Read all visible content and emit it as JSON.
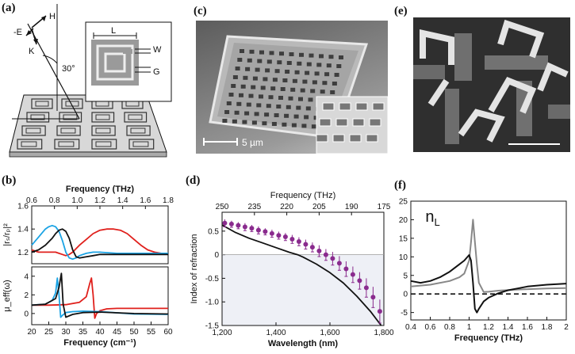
{
  "labels": {
    "a": "(a)",
    "b": "(b)",
    "c": "(c)",
    "d": "(d)",
    "e": "(e)",
    "f": "(f)"
  },
  "panel_a": {
    "H": "H",
    "E": "-E",
    "K": "K",
    "angle": "30°",
    "L": "L",
    "W": "W",
    "G": "G"
  },
  "panel_c": {
    "scale": "5 µm"
  },
  "colors": {
    "black": "#111111",
    "red": "#e0201c",
    "blue": "#1ba3e4",
    "purple": "#8a2b8e",
    "gray": "#888888"
  },
  "chart_data": [
    {
      "id": "b-top",
      "type": "line",
      "xlabel": "Frequency (cm⁻¹)",
      "top_axis_label": "Frequency (THz)",
      "ylabel": "|rₛ/rₚ|²",
      "x_ticks": [
        "20",
        "25",
        "30",
        "35",
        "40",
        "45",
        "50",
        "55",
        "60"
      ],
      "top_ticks": [
        "0.6",
        "0.8",
        "1.0",
        "1.2",
        "1.4",
        "1.6",
        "1.8"
      ],
      "y_ticks": [
        "1.2",
        "1.4",
        "1.6"
      ],
      "xlim": [
        20,
        60
      ],
      "ylim": [
        1.1,
        1.6
      ],
      "series": [
        {
          "color": "red",
          "x": [
            20,
            22,
            24,
            26,
            27,
            28,
            29,
            30,
            31,
            32,
            33,
            34,
            36,
            38,
            40,
            42,
            44,
            46,
            48,
            50,
            52,
            54,
            56,
            58,
            60
          ],
          "y": [
            1.22,
            1.2,
            1.2,
            1.2,
            1.2,
            1.19,
            1.18,
            1.17,
            1.18,
            1.2,
            1.23,
            1.26,
            1.31,
            1.36,
            1.39,
            1.4,
            1.4,
            1.39,
            1.36,
            1.31,
            1.26,
            1.22,
            1.2,
            1.19,
            1.19
          ]
        },
        {
          "color": "blue",
          "x": [
            20,
            22,
            24,
            25,
            26,
            27,
            28,
            29,
            30,
            31,
            32,
            33,
            34,
            36,
            38,
            40,
            45,
            50,
            55,
            60
          ],
          "y": [
            1.26,
            1.33,
            1.4,
            1.42,
            1.43,
            1.42,
            1.38,
            1.3,
            1.2,
            1.15,
            1.14,
            1.15,
            1.17,
            1.19,
            1.2,
            1.2,
            1.19,
            1.19,
            1.19,
            1.19
          ]
        },
        {
          "color": "black",
          "x": [
            20,
            22,
            24,
            26,
            27,
            28,
            29,
            30,
            31,
            32,
            33,
            34,
            36,
            38,
            40,
            45,
            50,
            55,
            60
          ],
          "y": [
            1.2,
            1.22,
            1.26,
            1.32,
            1.36,
            1.39,
            1.4,
            1.38,
            1.32,
            1.22,
            1.16,
            1.15,
            1.16,
            1.17,
            1.18,
            1.18,
            1.18,
            1.18,
            1.18
          ]
        }
      ]
    },
    {
      "id": "b-bottom",
      "type": "line",
      "xlabel": "Frequency (cm⁻¹)",
      "ylabel": "μ_eff(ω)",
      "x_ticks": [
        "20",
        "25",
        "30",
        "35",
        "40",
        "45",
        "50",
        "55",
        "60"
      ],
      "y_ticks": [
        "0",
        "2",
        "4"
      ],
      "xlim": [
        20,
        60
      ],
      "ylim": [
        -1.2,
        5
      ],
      "series": [
        {
          "color": "red",
          "x": [
            20,
            25,
            30,
            34,
            36,
            37,
            37.5,
            38,
            38.5,
            39,
            40,
            42,
            45,
            50,
            55,
            60
          ],
          "y": [
            0.9,
            0.9,
            0.95,
            1.2,
            1.8,
            3.2,
            3.8,
            2,
            -0.5,
            0,
            0.3,
            0.5,
            0.55,
            0.55,
            0.55,
            0.55
          ]
        },
        {
          "color": "blue",
          "x": [
            20,
            24,
            26,
            27,
            27.5,
            28,
            28.5,
            29,
            30,
            32,
            35,
            40,
            50,
            60
          ],
          "y": [
            0.9,
            1,
            1.4,
            2.2,
            3.8,
            2,
            -0.4,
            -0.2,
            0.1,
            0.2,
            0.25,
            0.2,
            -0.05,
            -0.1
          ]
        },
        {
          "color": "black",
          "x": [
            20,
            24,
            27,
            28,
            28.7,
            29.2,
            30,
            32,
            35,
            40,
            50,
            60
          ],
          "y": [
            0.9,
            1,
            1.6,
            2.8,
            4.3,
            1,
            -0.4,
            -0.1,
            0.1,
            0.15,
            0,
            -0.05
          ]
        }
      ]
    },
    {
      "id": "d",
      "type": "line",
      "xlabel": "Wavelength (nm)",
      "top_axis_label": "Frequency (THz)",
      "ylabel": "Index of refraction",
      "x_ticks": [
        "1,200",
        "1,400",
        "1,600",
        "1,800"
      ],
      "top_ticks": [
        "250",
        "235",
        "220",
        "205",
        "190",
        "175"
      ],
      "y_ticks": [
        "-1.5",
        "-1.0",
        "-0.5",
        "0",
        "0.5"
      ],
      "xlim": [
        1200,
        1800
      ],
      "ylim": [
        -1.5,
        0.9
      ],
      "series": [
        {
          "color": "black",
          "x": [
            1200,
            1250,
            1300,
            1350,
            1400,
            1450,
            1480,
            1500,
            1550,
            1600,
            1650,
            1700,
            1750,
            1790
          ],
          "y": [
            0.63,
            0.47,
            0.35,
            0.25,
            0.15,
            0.05,
            0,
            -0.05,
            -0.2,
            -0.38,
            -0.6,
            -0.88,
            -1.2,
            -1.5
          ]
        },
        {
          "color": "purple",
          "x": [
            1210,
            1235,
            1260,
            1285,
            1310,
            1335,
            1360,
            1385,
            1410,
            1435,
            1460,
            1485,
            1510,
            1535,
            1560,
            1585,
            1610,
            1635,
            1660,
            1685,
            1710,
            1735,
            1760,
            1785
          ],
          "y": [
            0.67,
            0.65,
            0.62,
            0.59,
            0.56,
            0.52,
            0.49,
            0.45,
            0.41,
            0.38,
            0.33,
            0.28,
            0.22,
            0.16,
            0.08,
            0,
            -0.08,
            -0.18,
            -0.3,
            -0.42,
            -0.55,
            -0.7,
            -0.9,
            -1.2
          ],
          "err": [
            0.08,
            0.07,
            0.07,
            0.08,
            0.07,
            0.08,
            0.07,
            0.08,
            0.08,
            0.08,
            0.09,
            0.09,
            0.1,
            0.1,
            0.12,
            0.12,
            0.14,
            0.15,
            0.16,
            0.17,
            0.18,
            0.2,
            0.22,
            0.25
          ]
        }
      ]
    },
    {
      "id": "f",
      "type": "line",
      "xlabel": "Frequency (THz)",
      "series_label": "n_L",
      "x_ticks": [
        "0.4",
        "0.6",
        "0.8",
        "1",
        "1.2",
        "1.4",
        "1.6",
        "1.8",
        "2"
      ],
      "y_ticks": [
        "-5",
        "0",
        "5",
        "10",
        "15",
        "20",
        "25"
      ],
      "xlim": [
        0.4,
        2
      ],
      "ylim": [
        -7,
        25
      ],
      "series": [
        {
          "color": "gray",
          "x": [
            0.4,
            0.6,
            0.8,
            0.9,
            0.95,
            1,
            1.02,
            1.04,
            1.06,
            1.08,
            1.1,
            1.15,
            1.2,
            1.3,
            1.5,
            1.8,
            2
          ],
          "y": [
            2,
            2.5,
            3.5,
            4.5,
            5.5,
            9,
            14,
            20,
            14,
            8,
            3,
            0.5,
            0.6,
            0.9,
            1.2,
            1.5,
            1.6
          ]
        },
        {
          "color": "black",
          "x": [
            0.4,
            0.5,
            0.6,
            0.7,
            0.8,
            0.9,
            0.95,
            1,
            1.02,
            1.04,
            1.06,
            1.08,
            1.1,
            1.15,
            1.2,
            1.3,
            1.4,
            1.5,
            1.6,
            1.8,
            2
          ],
          "y": [
            3.5,
            3,
            3.5,
            4.5,
            6,
            8,
            9,
            10.5,
            9,
            3,
            -4,
            -5,
            -4,
            -2,
            -1,
            0.2,
            1,
            1.5,
            2,
            2.5,
            2.8
          ]
        },
        {
          "color": "black",
          "dashed": true,
          "x": [
            0.4,
            2
          ],
          "y": [
            0,
            0
          ]
        }
      ]
    }
  ]
}
